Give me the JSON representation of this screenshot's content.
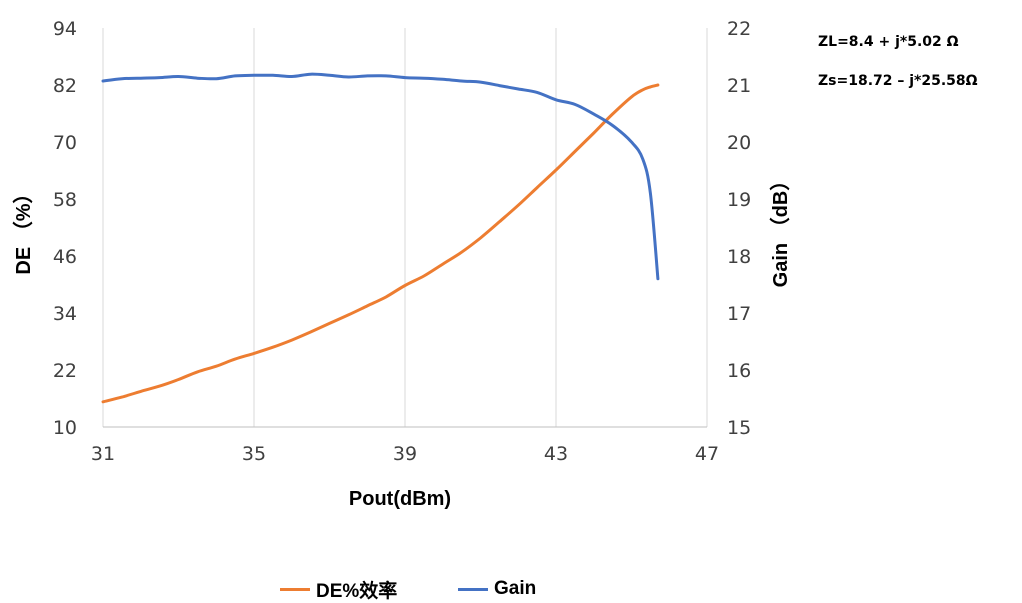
{
  "chart_data": {
    "type": "line",
    "xlabel": "Pout(dBm)",
    "ylabel_left": "DE （%）",
    "ylabel_right": "Gain （dB）",
    "xlim": [
      31,
      47
    ],
    "ylim_left": [
      10,
      94
    ],
    "ylim_right": [
      15,
      22
    ],
    "x_ticks": [
      "31",
      "35",
      "39",
      "43",
      "47"
    ],
    "y_ticks_left": [
      "10",
      "22",
      "34",
      "46",
      "58",
      "70",
      "82",
      "94"
    ],
    "y_ticks_right": [
      "15",
      "16",
      "17",
      "18",
      "19",
      "20",
      "21",
      "22"
    ],
    "grid": "vertical",
    "legend_position": "bottom",
    "annotations": [
      "ZL=8.4 + j*5.02 Ω",
      "Zs=18.72 – j*25.58Ω"
    ],
    "series": [
      {
        "name": "DE%效率",
        "axis": "left",
        "color": "#ED7D31",
        "x": [
          31.0,
          31.5,
          32.0,
          32.5,
          33.0,
          33.5,
          34.0,
          34.5,
          35.0,
          35.5,
          36.0,
          36.5,
          37.0,
          37.5,
          38.0,
          38.5,
          39.0,
          39.5,
          40.0,
          40.5,
          41.0,
          41.5,
          42.0,
          42.5,
          43.0,
          43.5,
          44.0,
          44.5,
          45.0,
          45.3,
          45.5,
          45.7
        ],
        "values": [
          15.3,
          16.3,
          17.5,
          18.6,
          20.0,
          21.6,
          22.8,
          24.3,
          25.5,
          26.8,
          28.3,
          30.0,
          31.8,
          33.6,
          35.5,
          37.4,
          39.8,
          41.8,
          44.3,
          46.8,
          49.8,
          53.2,
          56.7,
          60.4,
          64.1,
          68.0,
          71.9,
          75.9,
          79.5,
          81.0,
          81.6,
          82.0
        ]
      },
      {
        "name": "Gain",
        "axis": "right",
        "color": "#4472C4",
        "x": [
          31.0,
          31.5,
          32.0,
          32.5,
          33.0,
          33.5,
          34.0,
          34.5,
          35.0,
          35.5,
          36.0,
          36.5,
          37.0,
          37.5,
          38.0,
          38.5,
          39.0,
          39.5,
          40.0,
          40.5,
          41.0,
          41.5,
          42.0,
          42.5,
          43.0,
          43.5,
          44.0,
          44.5,
          45.0,
          45.3,
          45.5,
          45.7
        ],
        "values": [
          21.07,
          21.11,
          21.12,
          21.13,
          21.15,
          21.12,
          21.11,
          21.16,
          21.17,
          21.17,
          21.15,
          21.19,
          21.17,
          21.14,
          21.16,
          21.16,
          21.13,
          21.12,
          21.1,
          21.07,
          21.05,
          20.99,
          20.93,
          20.87,
          20.74,
          20.66,
          20.49,
          20.29,
          20.0,
          19.7,
          19.1,
          17.6
        ]
      }
    ]
  }
}
